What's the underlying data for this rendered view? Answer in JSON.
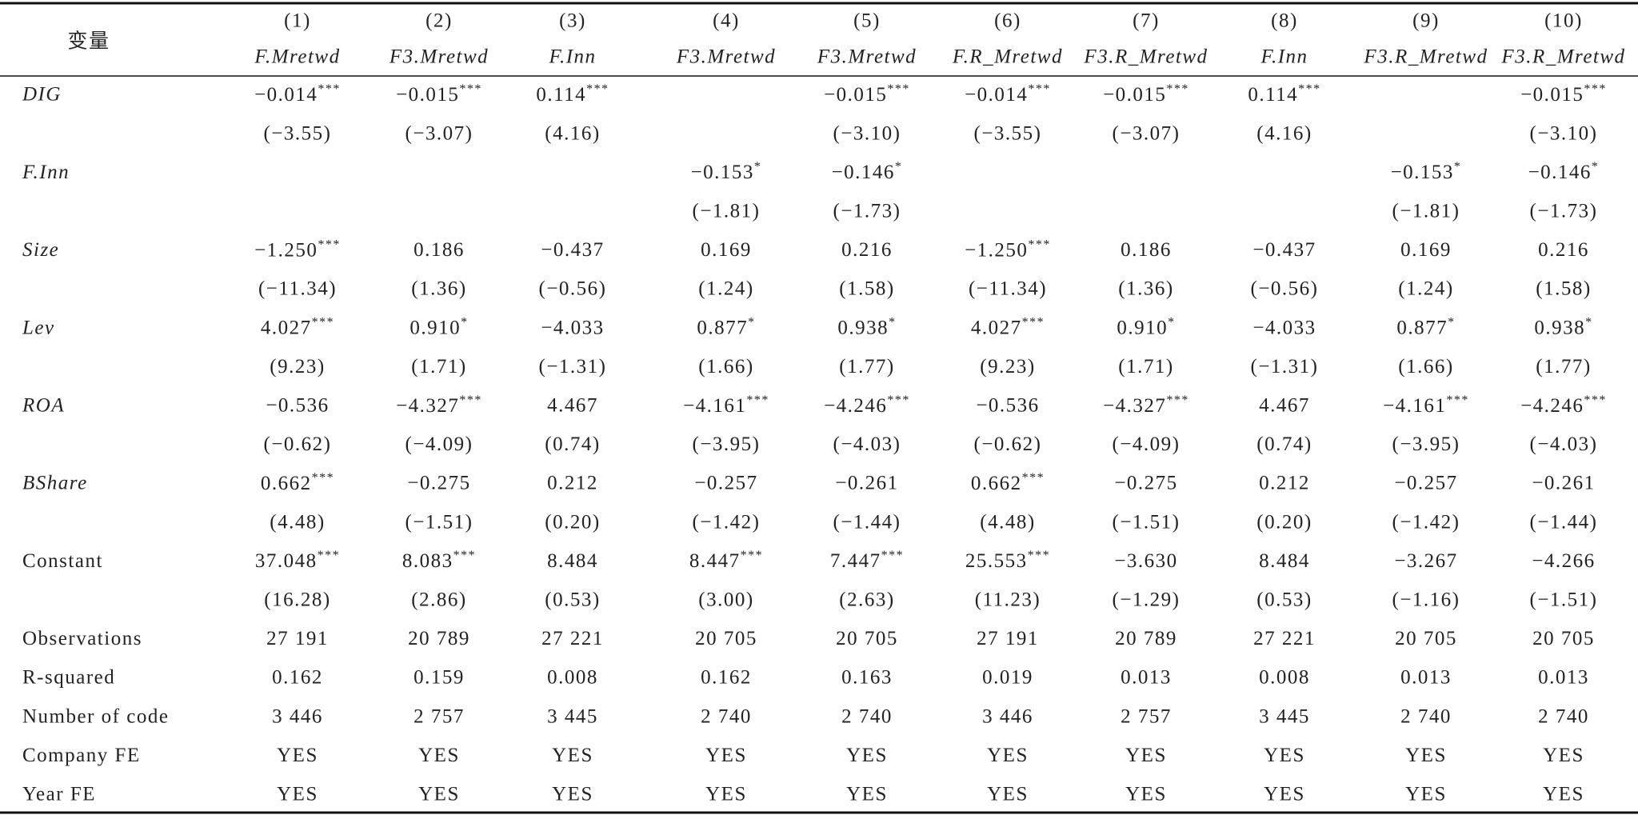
{
  "table": {
    "corner": "变量",
    "col_numbers": [
      "(1)",
      "(2)",
      "(3)",
      "(4)",
      "(5)",
      "(6)",
      "(7)",
      "(8)",
      "(9)",
      "(10)"
    ],
    "col_depvars": [
      "F.Mretwd",
      "F3.Mretwd",
      "F.Inn",
      "F3.Mretwd",
      "F3.Mretwd",
      "F.R_Mretwd",
      "F3.R_Mretwd",
      "F.Inn",
      "F3.R_Mretwd",
      "F3.R_Mretwd"
    ],
    "rows": [
      {
        "label": "DIG",
        "italic": true,
        "cells": [
          {
            "text": "−0.014",
            "sig": "***"
          },
          {
            "text": "−0.015",
            "sig": "***"
          },
          {
            "text": "0.114",
            "sig": "***"
          },
          null,
          {
            "text": "−0.015",
            "sig": "***"
          },
          {
            "text": "−0.014",
            "sig": "***"
          },
          {
            "text": "−0.015",
            "sig": "***"
          },
          {
            "text": "0.114",
            "sig": "***"
          },
          null,
          {
            "text": "−0.015",
            "sig": "***"
          }
        ]
      },
      {
        "cells": [
          "(−3.55)",
          "(−3.07)",
          "(4.16)",
          null,
          "(−3.10)",
          "(−3.55)",
          "(−3.07)",
          "(4.16)",
          null,
          "(−3.10)"
        ]
      },
      {
        "label": "F.Inn",
        "italic": true,
        "cells": [
          null,
          null,
          null,
          {
            "text": "−0.153",
            "sig": "*"
          },
          {
            "text": "−0.146",
            "sig": "*"
          },
          null,
          null,
          null,
          {
            "text": "−0.153",
            "sig": "*"
          },
          {
            "text": "−0.146",
            "sig": "*"
          }
        ]
      },
      {
        "cells": [
          null,
          null,
          null,
          "(−1.81)",
          "(−1.73)",
          null,
          null,
          null,
          "(−1.81)",
          "(−1.73)"
        ]
      },
      {
        "label": "Size",
        "italic": true,
        "cells": [
          {
            "text": "−1.250",
            "sig": "***"
          },
          "0.186",
          "−0.437",
          "0.169",
          "0.216",
          {
            "text": "−1.250",
            "sig": "***"
          },
          "0.186",
          "−0.437",
          "0.169",
          "0.216"
        ]
      },
      {
        "cells": [
          "(−11.34)",
          "(1.36)",
          "(−0.56)",
          "(1.24)",
          "(1.58)",
          "(−11.34)",
          "(1.36)",
          "(−0.56)",
          "(1.24)",
          "(1.58)"
        ]
      },
      {
        "label": "Lev",
        "italic": true,
        "cells": [
          {
            "text": "4.027",
            "sig": "***"
          },
          {
            "text": "0.910",
            "sig": "*"
          },
          "−4.033",
          {
            "text": "0.877",
            "sig": "*"
          },
          {
            "text": "0.938",
            "sig": "*"
          },
          {
            "text": "4.027",
            "sig": "***"
          },
          {
            "text": "0.910",
            "sig": "*"
          },
          "−4.033",
          {
            "text": "0.877",
            "sig": "*"
          },
          {
            "text": "0.938",
            "sig": "*"
          }
        ]
      },
      {
        "cells": [
          "(9.23)",
          "(1.71)",
          "(−1.31)",
          "(1.66)",
          "(1.77)",
          "(9.23)",
          "(1.71)",
          "(−1.31)",
          "(1.66)",
          "(1.77)"
        ]
      },
      {
        "label": "ROA",
        "italic": true,
        "cells": [
          "−0.536",
          {
            "text": "−4.327",
            "sig": "***"
          },
          "4.467",
          {
            "text": "−4.161",
            "sig": "***"
          },
          {
            "text": "−4.246",
            "sig": "***"
          },
          "−0.536",
          {
            "text": "−4.327",
            "sig": "***"
          },
          "4.467",
          {
            "text": "−4.161",
            "sig": "***"
          },
          {
            "text": "−4.246",
            "sig": "***"
          }
        ]
      },
      {
        "cells": [
          "(−0.62)",
          "(−4.09)",
          "(0.74)",
          "(−3.95)",
          "(−4.03)",
          "(−0.62)",
          "(−4.09)",
          "(0.74)",
          "(−3.95)",
          "(−4.03)"
        ]
      },
      {
        "label": "BShare",
        "italic": true,
        "cells": [
          {
            "text": "0.662",
            "sig": "***"
          },
          "−0.275",
          "0.212",
          "−0.257",
          "−0.261",
          {
            "text": "0.662",
            "sig": "***"
          },
          "−0.275",
          "0.212",
          "−0.257",
          "−0.261"
        ]
      },
      {
        "cells": [
          "(4.48)",
          "(−1.51)",
          "(0.20)",
          "(−1.42)",
          "(−1.44)",
          "(4.48)",
          "(−1.51)",
          "(0.20)",
          "(−1.42)",
          "(−1.44)"
        ]
      },
      {
        "label": "Constant",
        "cells": [
          {
            "text": "37.048",
            "sig": "***"
          },
          {
            "text": "8.083",
            "sig": "***"
          },
          "8.484",
          {
            "text": "8.447",
            "sig": "***"
          },
          {
            "text": "7.447",
            "sig": "***"
          },
          {
            "text": "25.553",
            "sig": "***"
          },
          "−3.630",
          "8.484",
          "−3.267",
          "−4.266"
        ]
      },
      {
        "cells": [
          "(16.28)",
          "(2.86)",
          "(0.53)",
          "(3.00)",
          "(2.63)",
          "(11.23)",
          "(−1.29)",
          "(0.53)",
          "(−1.16)",
          "(−1.51)"
        ]
      },
      {
        "label": "Observations",
        "cells": [
          "27 191",
          "20 789",
          "27 221",
          "20 705",
          "20 705",
          "27 191",
          "20 789",
          "27 221",
          "20 705",
          "20 705"
        ]
      },
      {
        "label": "R-squared",
        "cells": [
          "0.162",
          "0.159",
          "0.008",
          "0.162",
          "0.163",
          "0.019",
          "0.013",
          "0.008",
          "0.013",
          "0.013"
        ]
      },
      {
        "label": "Number of code",
        "cells": [
          "3 446",
          "2 757",
          "3 445",
          "2 740",
          "2 740",
          "3 446",
          "2 757",
          "3 445",
          "2 740",
          "2 740"
        ]
      },
      {
        "label": "Company FE",
        "cells": [
          "YES",
          "YES",
          "YES",
          "YES",
          "YES",
          "YES",
          "YES",
          "YES",
          "YES",
          "YES"
        ]
      },
      {
        "label": "Year FE",
        "cells": [
          "YES",
          "YES",
          "YES",
          "YES",
          "YES",
          "YES",
          "YES",
          "YES",
          "YES",
          "YES"
        ]
      }
    ]
  }
}
